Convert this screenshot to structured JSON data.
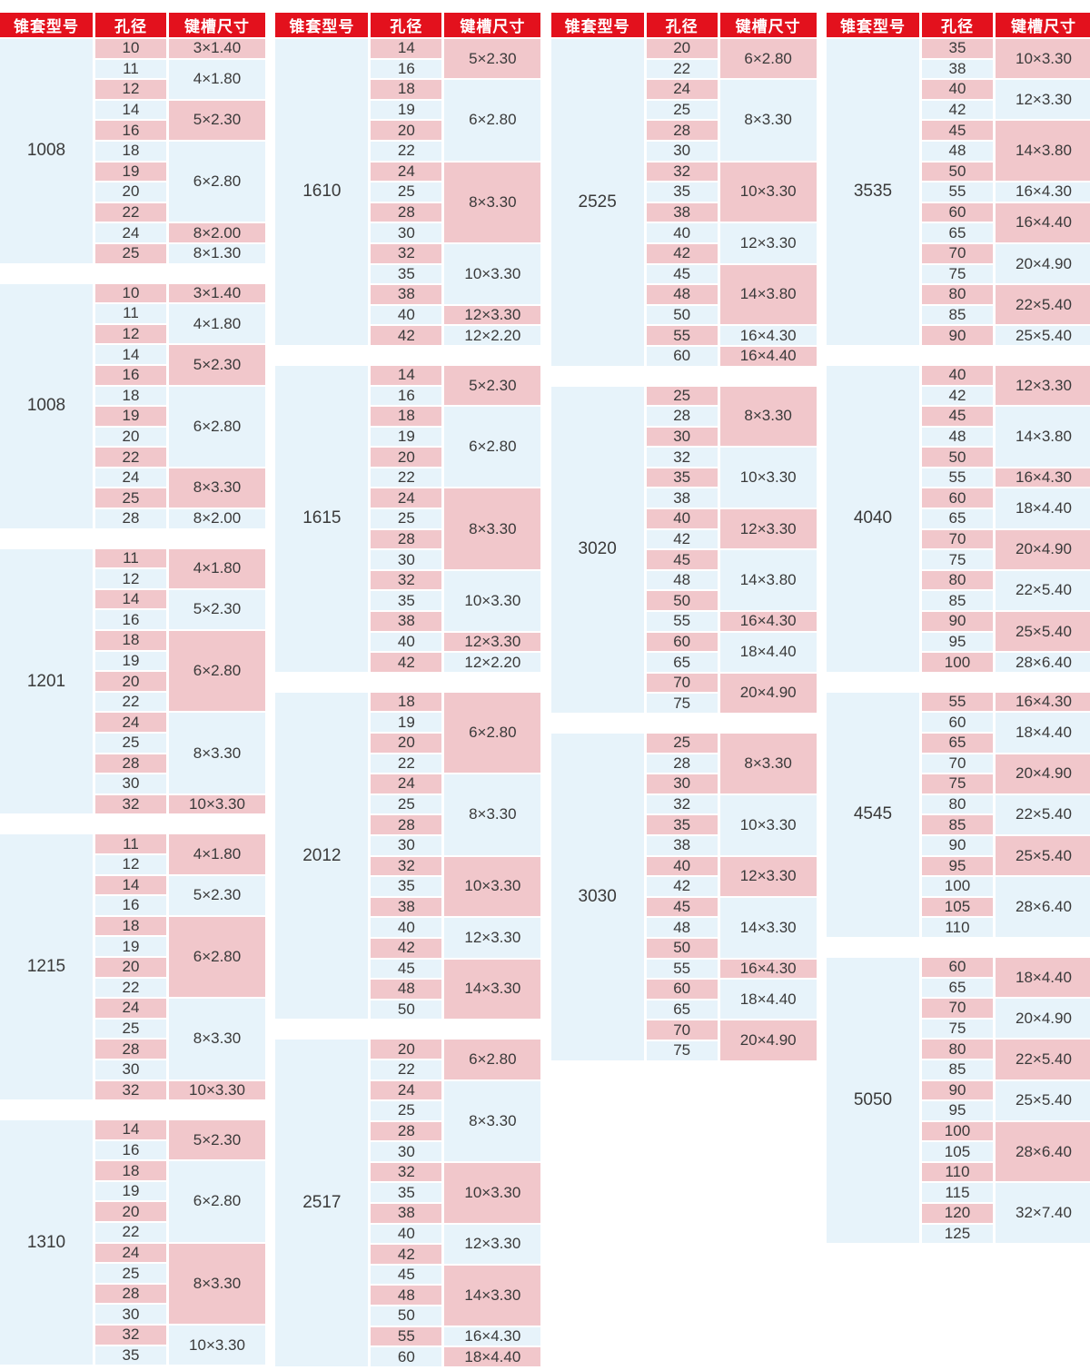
{
  "header": {
    "model": "锥套型号",
    "bore": "孔径",
    "keyway": "键槽尺寸"
  },
  "colors": {
    "header_bg": "#e3111d",
    "header_text": "#ffffff",
    "pink": "#f1c7cb",
    "blue": "#e7f3fa",
    "text": "#3a3a3a",
    "page_bg": "#ffffff"
  },
  "columns": [
    {
      "blocks": [
        {
          "model": "1008",
          "groups": [
            {
              "keyway": "3×1.40",
              "bores": [
                10
              ]
            },
            {
              "keyway": "4×1.80",
              "bores": [
                11,
                12
              ]
            },
            {
              "keyway": "5×2.30",
              "bores": [
                14,
                16
              ]
            },
            {
              "keyway": "6×2.80",
              "bores": [
                18,
                19,
                20,
                22
              ]
            },
            {
              "keyway": "8×2.00",
              "bores": [
                24
              ]
            },
            {
              "keyway": "8×1.30",
              "bores": [
                25
              ]
            }
          ]
        },
        {
          "model": "1008",
          "groups": [
            {
              "keyway": "3×1.40",
              "bores": [
                10
              ]
            },
            {
              "keyway": "4×1.80",
              "bores": [
                11,
                12
              ]
            },
            {
              "keyway": "5×2.30",
              "bores": [
                14,
                16
              ]
            },
            {
              "keyway": "6×2.80",
              "bores": [
                18,
                19,
                20,
                22
              ]
            },
            {
              "keyway": "8×3.30",
              "bores": [
                24,
                25
              ]
            },
            {
              "keyway": "8×2.00",
              "bores": [
                28
              ]
            }
          ]
        },
        {
          "model": "1201",
          "groups": [
            {
              "keyway": "4×1.80",
              "bores": [
                11,
                12
              ]
            },
            {
              "keyway": "5×2.30",
              "bores": [
                14,
                16
              ]
            },
            {
              "keyway": "6×2.80",
              "bores": [
                18,
                19,
                20,
                22
              ]
            },
            {
              "keyway": "8×3.30",
              "bores": [
                24,
                25,
                28,
                30
              ]
            },
            {
              "keyway": "10×3.30",
              "bores": [
                32
              ]
            }
          ]
        },
        {
          "model": "1215",
          "groups": [
            {
              "keyway": "4×1.80",
              "bores": [
                11,
                12
              ]
            },
            {
              "keyway": "5×2.30",
              "bores": [
                14,
                16
              ]
            },
            {
              "keyway": "6×2.80",
              "bores": [
                18,
                19,
                20,
                22
              ]
            },
            {
              "keyway": "8×3.30",
              "bores": [
                24,
                25,
                28,
                30
              ]
            },
            {
              "keyway": "10×3.30",
              "bores": [
                32
              ]
            }
          ]
        },
        {
          "model": "1310",
          "groups": [
            {
              "keyway": "5×2.30",
              "bores": [
                14,
                16
              ]
            },
            {
              "keyway": "6×2.80",
              "bores": [
                18,
                19,
                20,
                22
              ]
            },
            {
              "keyway": "8×3.30",
              "bores": [
                24,
                25,
                28,
                30
              ]
            },
            {
              "keyway": "10×3.30",
              "bores": [
                32,
                35
              ]
            }
          ]
        }
      ]
    },
    {
      "blocks": [
        {
          "model": "1610",
          "groups": [
            {
              "keyway": "5×2.30",
              "bores": [
                14,
                16
              ]
            },
            {
              "keyway": "6×2.80",
              "bores": [
                18,
                19,
                20,
                22
              ]
            },
            {
              "keyway": "8×3.30",
              "bores": [
                24,
                25,
                28,
                30
              ]
            },
            {
              "keyway": "10×3.30",
              "bores": [
                32,
                35,
                38
              ]
            },
            {
              "keyway": "12×3.30",
              "bores": [
                40
              ]
            },
            {
              "keyway": "12×2.20",
              "bores": [
                42
              ]
            }
          ]
        },
        {
          "model": "1615",
          "groups": [
            {
              "keyway": "5×2.30",
              "bores": [
                14,
                16
              ]
            },
            {
              "keyway": "6×2.80",
              "bores": [
                18,
                19,
                20,
                22
              ]
            },
            {
              "keyway": "8×3.30",
              "bores": [
                24,
                25,
                28,
                30
              ]
            },
            {
              "keyway": "10×3.30",
              "bores": [
                32,
                35,
                38
              ]
            },
            {
              "keyway": "12×3.30",
              "bores": [
                40
              ]
            },
            {
              "keyway": "12×2.20",
              "bores": [
                42
              ]
            }
          ]
        },
        {
          "model": "2012",
          "groups": [
            {
              "keyway": "6×2.80",
              "bores": [
                18,
                19,
                20,
                22
              ]
            },
            {
              "keyway": "8×3.30",
              "bores": [
                24,
                25,
                28,
                30
              ]
            },
            {
              "keyway": "10×3.30",
              "bores": [
                32,
                35,
                38
              ]
            },
            {
              "keyway": "12×3.30",
              "bores": [
                40,
                42
              ]
            },
            {
              "keyway": "14×3.30",
              "bores": [
                45,
                48,
                50
              ]
            }
          ]
        },
        {
          "model": "2517",
          "groups": [
            {
              "keyway": "6×2.80",
              "bores": [
                20,
                22
              ]
            },
            {
              "keyway": "8×3.30",
              "bores": [
                24,
                25,
                28,
                30
              ]
            },
            {
              "keyway": "10×3.30",
              "bores": [
                32,
                35,
                38
              ]
            },
            {
              "keyway": "12×3.30",
              "bores": [
                40,
                42
              ]
            },
            {
              "keyway": "14×3.30",
              "bores": [
                45,
                48,
                50
              ]
            },
            {
              "keyway": "16×4.30",
              "bores": [
                55
              ]
            },
            {
              "keyway": "18×4.40",
              "bores": [
                60
              ]
            }
          ]
        }
      ]
    },
    {
      "blocks": [
        {
          "model": "2525",
          "groups": [
            {
              "keyway": "6×2.80",
              "bores": [
                20,
                22
              ]
            },
            {
              "keyway": "8×3.30",
              "bores": [
                24,
                25,
                28,
                30
              ]
            },
            {
              "keyway": "10×3.30",
              "bores": [
                32,
                35,
                38
              ]
            },
            {
              "keyway": "12×3.30",
              "bores": [
                40,
                42
              ]
            },
            {
              "keyway": "14×3.80",
              "bores": [
                45,
                48,
                50
              ]
            },
            {
              "keyway": "16×4.30",
              "bores": [
                55
              ]
            },
            {
              "keyway": "16×4.40",
              "bores": [
                60
              ]
            }
          ]
        },
        {
          "model": "3020",
          "groups": [
            {
              "keyway": "8×3.30",
              "bores": [
                25,
                28,
                30
              ]
            },
            {
              "keyway": "10×3.30",
              "bores": [
                32,
                35,
                38
              ]
            },
            {
              "keyway": "12×3.30",
              "bores": [
                40,
                42
              ]
            },
            {
              "keyway": "14×3.80",
              "bores": [
                45,
                48,
                50
              ]
            },
            {
              "keyway": "16×4.30",
              "bores": [
                55
              ]
            },
            {
              "keyway": "18×4.40",
              "bores": [
                60,
                65
              ]
            },
            {
              "keyway": "20×4.90",
              "bores": [
                70,
                75
              ]
            }
          ]
        },
        {
          "model": "3030",
          "groups": [
            {
              "keyway": "8×3.30",
              "bores": [
                25,
                28,
                30
              ]
            },
            {
              "keyway": "10×3.30",
              "bores": [
                32,
                35,
                38
              ]
            },
            {
              "keyway": "12×3.30",
              "bores": [
                40,
                42
              ]
            },
            {
              "keyway": "14×3.30",
              "bores": [
                45,
                48,
                50
              ]
            },
            {
              "keyway": "16×4.30",
              "bores": [
                55
              ]
            },
            {
              "keyway": "18×4.40",
              "bores": [
                60,
                65
              ]
            },
            {
              "keyway": "20×4.90",
              "bores": [
                70,
                75
              ]
            }
          ]
        }
      ]
    },
    {
      "blocks": [
        {
          "model": "3535",
          "groups": [
            {
              "keyway": "10×3.30",
              "bores": [
                35,
                38
              ]
            },
            {
              "keyway": "12×3.30",
              "bores": [
                40,
                42
              ]
            },
            {
              "keyway": "14×3.80",
              "bores": [
                45,
                48,
                50
              ]
            },
            {
              "keyway": "16×4.30",
              "bores": [
                55
              ]
            },
            {
              "keyway": "16×4.40",
              "bores": [
                60,
                65
              ]
            },
            {
              "keyway": "20×4.90",
              "bores": [
                70,
                75
              ]
            },
            {
              "keyway": "22×5.40",
              "bores": [
                80,
                85
              ]
            },
            {
              "keyway": "25×5.40",
              "bores": [
                90
              ]
            }
          ]
        },
        {
          "model": "4040",
          "groups": [
            {
              "keyway": "12×3.30",
              "bores": [
                40,
                42
              ]
            },
            {
              "keyway": "14×3.80",
              "bores": [
                45,
                48,
                50
              ]
            },
            {
              "keyway": "16×4.30",
              "bores": [
                55
              ]
            },
            {
              "keyway": "18×4.40",
              "bores": [
                60,
                65
              ]
            },
            {
              "keyway": "20×4.90",
              "bores": [
                70,
                75
              ]
            },
            {
              "keyway": "22×5.40",
              "bores": [
                80,
                85
              ]
            },
            {
              "keyway": "25×5.40",
              "bores": [
                90,
                95
              ]
            },
            {
              "keyway": "28×6.40",
              "bores": [
                100
              ]
            }
          ]
        },
        {
          "model": "4545",
          "groups": [
            {
              "keyway": "16×4.30",
              "bores": [
                55
              ]
            },
            {
              "keyway": "18×4.40",
              "bores": [
                60,
                65
              ]
            },
            {
              "keyway": "20×4.90",
              "bores": [
                70,
                75
              ]
            },
            {
              "keyway": "22×5.40",
              "bores": [
                80,
                85
              ]
            },
            {
              "keyway": "25×5.40",
              "bores": [
                90,
                95
              ]
            },
            {
              "keyway": "28×6.40",
              "bores": [
                100,
                105,
                110
              ]
            }
          ]
        },
        {
          "model": "5050",
          "groups": [
            {
              "keyway": "18×4.40",
              "bores": [
                60,
                65
              ]
            },
            {
              "keyway": "20×4.90",
              "bores": [
                70,
                75
              ]
            },
            {
              "keyway": "22×5.40",
              "bores": [
                80,
                85
              ]
            },
            {
              "keyway": "25×5.40",
              "bores": [
                90,
                95
              ]
            },
            {
              "keyway": "28×6.40",
              "bores": [
                100,
                105,
                110
              ]
            },
            {
              "keyway": "32×7.40",
              "bores": [
                115,
                120,
                125
              ]
            }
          ]
        }
      ]
    }
  ]
}
